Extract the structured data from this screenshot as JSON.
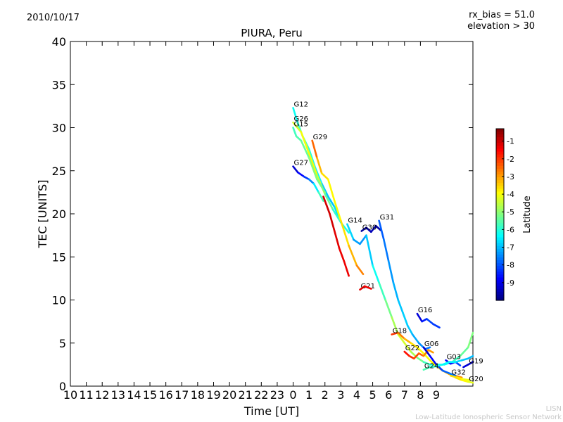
{
  "header": {
    "date": "2010/10/17",
    "rx_bias": "rx_bias = 51.0",
    "elevation": "elevation > 30"
  },
  "footer": {
    "credit_short": "LISN",
    "credit_long": "Low-Latitude Ionospheric Sensor Network"
  },
  "chart_data": {
    "type": "line",
    "title": "PIURA, Peru",
    "xlabel": "Time [UT]",
    "ylabel": "TEC [UNITS]",
    "ylim": [
      0,
      40
    ],
    "yticks": [
      0,
      5,
      10,
      15,
      20,
      25,
      30,
      35,
      40
    ],
    "xlim": [
      10,
      35.3
    ],
    "x_tick_labels": [
      "10",
      "11",
      "12",
      "13",
      "14",
      "15",
      "16",
      "17",
      "18",
      "19",
      "20",
      "21",
      "22",
      "23",
      "0",
      "1",
      "2",
      "3",
      "4",
      "5",
      "6",
      "7",
      "8",
      "9"
    ],
    "grid": false,
    "colorbar": {
      "label": "Latitude",
      "range": [
        -10,
        -0.3
      ],
      "ticks": [
        -1,
        -2,
        -3,
        -4,
        -5,
        -6,
        -7,
        -8,
        -9
      ],
      "colormap": [
        "#00007f",
        "#0000ff",
        "#007fff",
        "#00ffff",
        "#7fff7f",
        "#ffff00",
        "#ff7f00",
        "#ff0000",
        "#7f0000"
      ]
    },
    "series": [
      {
        "name": "G12",
        "label_pos": [
          24.0,
          32.3
        ],
        "x": [
          24.0,
          24.3,
          24.6,
          25.0,
          25.4,
          25.8,
          26.2,
          26.6,
          27.0
        ],
        "y": [
          32.3,
          30.5,
          29.0,
          27.5,
          25.3,
          23.5,
          22.0,
          20.8,
          19.0
        ],
        "lat": [
          -6.5,
          -6.0,
          -5.7,
          -5.8,
          -6.2,
          -6.7,
          -7.0,
          -6.8,
          -6.5
        ]
      },
      {
        "name": "G26",
        "label_pos": [
          24.0,
          30.6
        ],
        "x": [
          24.0,
          24.5,
          25.0,
          25.5,
          26.0,
          26.5,
          27.0,
          27.5
        ],
        "y": [
          30.6,
          29.5,
          27.0,
          24.5,
          22.3,
          20.5,
          19.0,
          17.8
        ],
        "lat": [
          -4.5,
          -4.2,
          -3.8,
          -4.0,
          -5.0,
          -5.8,
          -6.0,
          -6.2
        ]
      },
      {
        "name": "G15",
        "label_pos": [
          24.0,
          30.0
        ],
        "x": [
          24.0,
          24.2,
          24.5,
          25.0,
          25.5,
          26.0
        ],
        "y": [
          30.0,
          29.0,
          28.5,
          26.5,
          24.0,
          22.5
        ],
        "lat": [
          -5.8,
          -5.7,
          -5.5,
          -5.2,
          -5.0,
          -5.5
        ]
      },
      {
        "name": "G29",
        "label_pos": [
          25.2,
          28.5
        ],
        "x": [
          25.2,
          25.5,
          25.8,
          26.2,
          26.6,
          27.0,
          27.5,
          28.0,
          28.4
        ],
        "y": [
          28.5,
          26.5,
          24.7,
          24.0,
          21.5,
          19.2,
          16.3,
          14.0,
          13.0
        ],
        "lat": [
          -2.0,
          -3.0,
          -3.5,
          -3.8,
          -4.0,
          -3.8,
          -3.5,
          -3.0,
          -2.5
        ]
      },
      {
        "name": "G27",
        "label_pos": [
          24.0,
          25.5
        ],
        "x": [
          24.0,
          24.3,
          24.7,
          25.0,
          25.3,
          25.6,
          25.9
        ],
        "y": [
          25.5,
          24.8,
          24.3,
          24.0,
          23.5,
          22.5,
          21.5
        ],
        "lat": [
          -9.5,
          -9.0,
          -8.5,
          -8.0,
          -7.0,
          -6.0,
          -5.5
        ]
      },
      {
        "name": "G21",
        "label_pos": [
          28.2,
          11.2
        ],
        "x": [
          25.9,
          26.1,
          26.3,
          26.6,
          26.9,
          27.2,
          27.5
        ],
        "y": [
          22.0,
          21.0,
          20.0,
          18.0,
          16.0,
          14.5,
          12.8
        ],
        "lat": [
          -1.2,
          -1.1,
          -1.0,
          -1.2,
          -1.3,
          -1.4,
          -1.3
        ]
      },
      {
        "name": "G21b",
        "label_pos": null,
        "x": [
          28.2,
          28.5,
          28.9
        ],
        "y": [
          11.2,
          11.6,
          11.3
        ],
        "lat": [
          -1.2,
          -1.3,
          -1.5
        ]
      },
      {
        "name": "G14",
        "label_pos": [
          27.4,
          18.8
        ],
        "x": [
          27.4,
          27.8,
          28.2,
          28.6,
          29.0,
          29.4,
          29.8,
          30.2,
          30.6,
          31.0,
          31.4,
          31.8,
          32.2,
          32.6,
          33.0,
          33.5,
          34.0,
          34.5,
          35.0,
          35.3
        ],
        "y": [
          18.8,
          17.0,
          16.5,
          17.5,
          14.0,
          12.0,
          10.0,
          8.0,
          6.0,
          5.0,
          4.0,
          3.3,
          2.8,
          2.5,
          2.5,
          2.5,
          2.8,
          3.5,
          4.5,
          6.2
        ],
        "lat": [
          -6.5,
          -7.0,
          -7.5,
          -7.2,
          -6.5,
          -6.0,
          -5.5,
          -5.0,
          -4.5,
          -4.2,
          -4.5,
          -5.0,
          -5.5,
          -6.0,
          -6.3,
          -6.5,
          -6.0,
          -5.5,
          -5.3,
          -5.0
        ]
      },
      {
        "name": "G30",
        "label_pos": [
          28.3,
          18.0
        ],
        "x": [
          28.3,
          28.6,
          28.9,
          29.2,
          29.5
        ],
        "y": [
          18.0,
          18.4,
          17.9,
          18.6,
          18.1
        ],
        "lat": [
          -9.8,
          -9.6,
          -9.4,
          -9.5,
          -9.7
        ]
      },
      {
        "name": "G31",
        "label_pos": [
          29.4,
          19.2
        ],
        "x": [
          29.4,
          29.7,
          30.0,
          30.3,
          30.6,
          30.9,
          31.2,
          31.5,
          31.9,
          32.3,
          32.6
        ],
        "y": [
          19.2,
          17.0,
          14.5,
          12.0,
          10.0,
          8.5,
          7.0,
          6.0,
          5.0,
          4.3,
          4.5
        ],
        "lat": [
          -8.0,
          -7.8,
          -7.5,
          -7.2,
          -7.0,
          -6.8,
          -6.8,
          -7.0,
          -7.3,
          -7.6,
          -7.8
        ]
      },
      {
        "name": "G16",
        "label_pos": [
          31.8,
          8.4
        ],
        "x": [
          31.8,
          32.1,
          32.4,
          32.8,
          33.2
        ],
        "y": [
          8.4,
          7.5,
          7.8,
          7.2,
          6.8
        ],
        "lat": [
          -9.5,
          -8.8,
          -8.3,
          -8.0,
          -8.5
        ]
      },
      {
        "name": "G18",
        "label_pos": [
          30.2,
          6.0
        ],
        "x": [
          30.2,
          30.6,
          31.0,
          31.4,
          31.8,
          32.2,
          32.6,
          33.0,
          33.4,
          33.8,
          34.2,
          34.6
        ],
        "y": [
          6.0,
          6.2,
          5.5,
          5.0,
          4.5,
          3.8,
          3.0,
          2.3,
          1.8,
          1.4,
          1.2,
          1.0
        ],
        "lat": [
          -1.5,
          -2.5,
          -3.0,
          -3.5,
          -3.8,
          -4.0,
          -4.0,
          -3.8,
          -3.5,
          -3.2,
          -3.0,
          -2.8
        ]
      },
      {
        "name": "G22",
        "label_pos": [
          31.0,
          4.0
        ],
        "x": [
          31.0,
          31.3,
          31.6,
          31.9,
          32.2,
          32.5,
          32.8
        ],
        "y": [
          4.0,
          3.5,
          3.2,
          3.8,
          3.5,
          4.2,
          3.9
        ],
        "lat": [
          -1.5,
          -1.8,
          -2.0,
          -2.3,
          -2.6,
          -2.9,
          -3.1
        ]
      },
      {
        "name": "G06",
        "label_pos": [
          32.2,
          4.5
        ],
        "x": [
          32.2,
          32.6,
          33.0,
          33.4,
          33.8,
          34.2
        ],
        "y": [
          4.5,
          3.5,
          2.5,
          1.8,
          1.5,
          1.2
        ],
        "lat": [
          -9.5,
          -9.0,
          -8.5,
          -8.0,
          -7.8,
          -7.5
        ]
      },
      {
        "name": "G03",
        "label_pos": [
          33.6,
          3.0
        ],
        "x": [
          33.6,
          33.9,
          34.2,
          34.5
        ],
        "y": [
          3.0,
          2.6,
          2.8,
          2.4
        ],
        "lat": [
          -9.0,
          -8.7,
          -8.3,
          -8.0
        ]
      },
      {
        "name": "G24",
        "label_pos": [
          32.2,
          1.9
        ],
        "x": [
          32.2,
          32.6,
          33.0,
          33.4,
          33.8,
          34.2,
          34.6,
          35.0,
          35.3
        ],
        "y": [
          1.9,
          2.2,
          2.3,
          2.5,
          2.8,
          2.8,
          3.0,
          3.2,
          3.5
        ],
        "lat": [
          -5.5,
          -5.8,
          -6.0,
          -6.3,
          -6.5,
          -6.5,
          -6.8,
          -7.0,
          -7.0
        ]
      },
      {
        "name": "G32",
        "label_pos": [
          33.9,
          1.2
        ],
        "x": [
          33.9,
          34.3,
          34.7,
          35.1
        ],
        "y": [
          1.2,
          1.0,
          0.8,
          0.7
        ],
        "lat": [
          -3.5,
          -3.8,
          -4.0,
          -4.2
        ]
      },
      {
        "name": "G19",
        "label_pos": [
          35.0,
          2.5
        ],
        "x": [
          34.7,
          35.0,
          35.3
        ],
        "y": [
          2.2,
          2.5,
          2.8
        ],
        "lat": [
          -9.0,
          -9.2,
          -9.5
        ]
      },
      {
        "name": "G20",
        "label_pos": [
          35.0,
          0.4
        ],
        "x": [
          34.2,
          34.6,
          35.0,
          35.3
        ],
        "y": [
          1.0,
          0.7,
          0.5,
          0.4
        ],
        "lat": [
          -3.5,
          -3.8,
          -4.0,
          -4.3
        ]
      }
    ]
  }
}
